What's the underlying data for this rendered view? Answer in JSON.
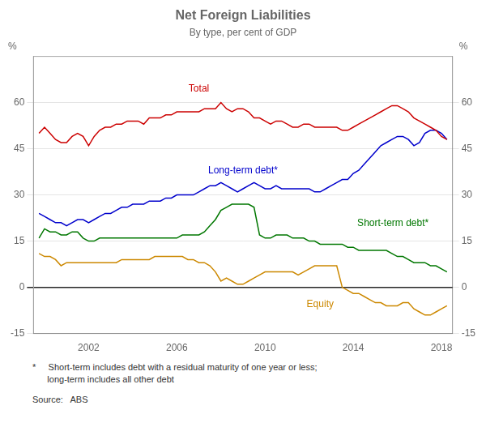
{
  "chart_data": {
    "type": "line",
    "title": "Net Foreign Liabilities",
    "subtitle": "By type, per cent of GDP",
    "ylabel": "%",
    "y2label": "%",
    "footnote": "*     Short-term includes debt with a residual maturity of one year or less;\n      long-term includes all other debt",
    "source": "Source:   ABS",
    "xlim": [
      1999.5,
      2018.5
    ],
    "xticks": [
      2002,
      2006,
      2010,
      2014,
      2018
    ],
    "ylim": [
      -15,
      75
    ],
    "yticks": [
      -15,
      0,
      15,
      30,
      45,
      60
    ],
    "y2lim": [
      -15,
      75
    ],
    "y2ticks": [
      -15,
      0,
      15,
      30,
      45,
      60
    ],
    "grid": "y",
    "x": [
      1999.75,
      2000.0,
      2000.25,
      2000.5,
      2000.75,
      2001.0,
      2001.25,
      2001.5,
      2001.75,
      2002.0,
      2002.25,
      2002.5,
      2002.75,
      2003.0,
      2003.25,
      2003.5,
      2003.75,
      2004.0,
      2004.25,
      2004.5,
      2004.75,
      2005.0,
      2005.25,
      2005.5,
      2005.75,
      2006.0,
      2006.25,
      2006.5,
      2006.75,
      2007.0,
      2007.25,
      2007.5,
      2007.75,
      2008.0,
      2008.25,
      2008.5,
      2008.75,
      2009.0,
      2009.25,
      2009.5,
      2009.75,
      2010.0,
      2010.25,
      2010.5,
      2010.75,
      2011.0,
      2011.25,
      2011.5,
      2011.75,
      2012.0,
      2012.25,
      2012.5,
      2012.75,
      2013.0,
      2013.25,
      2013.5,
      2013.75,
      2014.0,
      2014.25,
      2014.5,
      2014.75,
      2015.0,
      2015.25,
      2015.5,
      2015.75,
      2016.0,
      2016.25,
      2016.5,
      2016.75,
      2017.0,
      2017.25,
      2017.5,
      2017.75,
      2018.0,
      2018.25
    ],
    "series": [
      {
        "name": "Total",
        "color": "#cc0000",
        "values": [
          50,
          52,
          50,
          48,
          47,
          47,
          49,
          50,
          49,
          46,
          49,
          51,
          52,
          52,
          53,
          53,
          54,
          54,
          54,
          53,
          55,
          55,
          55,
          56,
          56,
          57,
          57,
          57,
          57,
          57,
          58,
          58,
          58,
          60,
          58,
          57,
          58,
          58,
          57,
          55,
          55,
          54,
          53,
          54,
          54,
          53,
          52,
          52,
          53,
          53,
          52,
          52,
          52,
          52,
          52,
          51,
          51,
          52,
          53,
          54,
          55,
          56,
          57,
          58,
          59,
          59,
          58,
          57,
          55,
          54,
          53,
          52,
          51,
          49,
          48
        ]
      },
      {
        "name": "Long-term debt*",
        "color": "#0000cc",
        "values": [
          24,
          23,
          22,
          21,
          21,
          20,
          21,
          22,
          22,
          21,
          22,
          23,
          24,
          24,
          25,
          26,
          26,
          27,
          27,
          27,
          28,
          28,
          28,
          29,
          29,
          30,
          30,
          30,
          30,
          31,
          32,
          33,
          33,
          34,
          33,
          32,
          31,
          32,
          33,
          34,
          33,
          32,
          32,
          33,
          32,
          32,
          32,
          32,
          32,
          32,
          31,
          31,
          32,
          33,
          34,
          35,
          35,
          37,
          38,
          40,
          42,
          44,
          46,
          47,
          48,
          49,
          49,
          48,
          46,
          47,
          50,
          51,
          51,
          50,
          48
        ]
      },
      {
        "name": "Short-term debt*",
        "color": "#007700",
        "values": [
          16,
          19,
          18,
          18,
          17,
          17,
          18,
          18,
          16,
          15,
          15,
          16,
          16,
          16,
          16,
          16,
          16,
          16,
          16,
          16,
          16,
          16,
          16,
          16,
          16,
          16,
          17,
          17,
          17,
          17,
          18,
          20,
          22,
          25,
          26,
          27,
          27,
          27,
          27,
          26,
          17,
          16,
          16,
          17,
          17,
          17,
          16,
          16,
          16,
          15,
          15,
          14,
          14,
          14,
          14,
          14,
          13,
          13,
          12,
          12,
          12,
          12,
          12,
          12,
          11,
          10,
          10,
          9,
          8,
          8,
          8,
          7,
          7,
          6,
          5
        ]
      },
      {
        "name": "Equity",
        "color": "#cc8800",
        "values": [
          11,
          10,
          10,
          9,
          7,
          8,
          8,
          8,
          8,
          8,
          8,
          8,
          8,
          8,
          8,
          9,
          9,
          9,
          9,
          9,
          9,
          10,
          10,
          10,
          10,
          10,
          10,
          9,
          9,
          8,
          8,
          7,
          5,
          2,
          3,
          2,
          1,
          1,
          2,
          3,
          4,
          5,
          5,
          5,
          5,
          5,
          5,
          4,
          5,
          6,
          7,
          7,
          7,
          7,
          7,
          0,
          -1,
          -2,
          -2,
          -3,
          -4,
          -5,
          -5,
          -6,
          -6,
          -6,
          -5,
          -5,
          -7,
          -8,
          -9,
          -9,
          -8,
          -7,
          -6
        ]
      }
    ],
    "annotations": [
      {
        "text": "Total",
        "x": 2007.0,
        "y": 63.5,
        "color": "#cc0000"
      },
      {
        "text": "Long-term debt*",
        "x": 2009.0,
        "y": 37,
        "color": "#0000cc"
      },
      {
        "text": "Short-term debt*",
        "x": 2015.8,
        "y": 20,
        "color": "#007700"
      },
      {
        "text": "Equity",
        "x": 2012.5,
        "y": -6.5,
        "color": "#cc8800"
      }
    ]
  }
}
